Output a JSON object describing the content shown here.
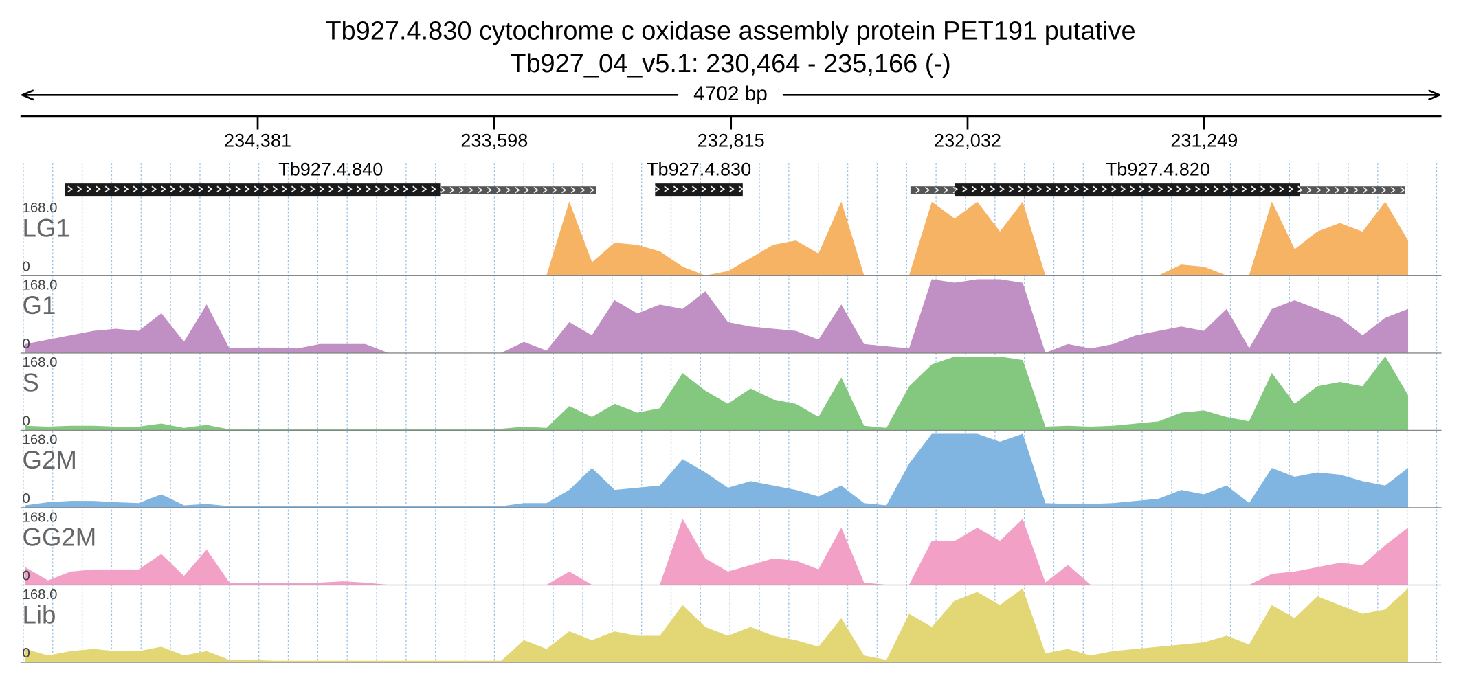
{
  "chart_data": {
    "type": "area",
    "title": "Tb927.4.830  cytochrome c oxidase assembly protein PET191  putative",
    "subtitle": "Tb927_04_v5.1: 230,464 - 235,166 (-)",
    "span_label": "4702 bp",
    "xlim": [
      235166,
      230464
    ],
    "xticks": [
      {
        "value": 234381,
        "label": "234,381"
      },
      {
        "value": 233598,
        "label": "233,598"
      },
      {
        "value": 232815,
        "label": "232,815"
      },
      {
        "value": 232032,
        "label": "232,032"
      },
      {
        "value": 231249,
        "label": "231,249"
      }
    ],
    "ylim": [
      0,
      168
    ],
    "yticks": [
      0,
      {
        "value": 168,
        "label": "168.0"
      }
    ],
    "genes": [
      {
        "label": "Tb927.4.840",
        "cds": [
          235018,
          233775
        ],
        "utr": [
          [
            233775,
            233261
          ]
        ]
      },
      {
        "label": "Tb927.4.830",
        "cds": [
          233066,
          232776
        ],
        "utr": []
      },
      {
        "label": "Tb927.4.820",
        "cds": [
          232073,
          230933
        ],
        "utr": [
          [
            232221,
            232073
          ],
          [
            230933,
            230584
          ]
        ]
      }
    ],
    "x": [
      235150,
      235075,
      235000,
      234925,
      234850,
      234775,
      234700,
      234625,
      234550,
      234475,
      234400,
      234325,
      234250,
      234175,
      234100,
      234025,
      233950,
      233875,
      233800,
      233725,
      233650,
      233575,
      233500,
      233425,
      233350,
      233275,
      233200,
      233125,
      233050,
      232975,
      232900,
      232825,
      232750,
      232675,
      232600,
      232525,
      232450,
      232375,
      232300,
      232225,
      232150,
      232075,
      232000,
      231925,
      231850,
      231775,
      231700,
      231625,
      231550,
      231475,
      231400,
      231325,
      231250,
      231175,
      231100,
      231025,
      230950,
      230875,
      230800,
      230725,
      230650,
      230575
    ],
    "series": [
      {
        "name": "LG1",
        "color": "#f6b363",
        "values": [
          0,
          0,
          0,
          0,
          0,
          0,
          0,
          0,
          0,
          0,
          0,
          0,
          0,
          0,
          0,
          0,
          0,
          0,
          0,
          0,
          0,
          0,
          0,
          0,
          168,
          30,
          75,
          70,
          55,
          20,
          0,
          10,
          40,
          70,
          80,
          50,
          168,
          0,
          0,
          0,
          168,
          130,
          168,
          100,
          168,
          0,
          0,
          0,
          0,
          0,
          0,
          25,
          20,
          0,
          0,
          168,
          60,
          100,
          120,
          100,
          168,
          80
        ]
      },
      {
        "name": "G1",
        "color": "#c08fc3",
        "values": [
          20,
          30,
          40,
          50,
          55,
          50,
          90,
          25,
          110,
          10,
          12,
          12,
          10,
          20,
          20,
          20,
          0,
          0,
          0,
          0,
          0,
          0,
          25,
          5,
          70,
          40,
          120,
          90,
          110,
          100,
          140,
          70,
          60,
          55,
          50,
          30,
          110,
          20,
          15,
          10,
          168,
          160,
          168,
          168,
          160,
          0,
          20,
          10,
          20,
          40,
          50,
          60,
          50,
          100,
          10,
          100,
          120,
          100,
          80,
          40,
          80,
          100
        ]
      },
      {
        "name": "S",
        "color": "#84c77f",
        "values": [
          10,
          8,
          10,
          10,
          8,
          8,
          15,
          5,
          12,
          2,
          3,
          3,
          3,
          3,
          3,
          3,
          3,
          3,
          3,
          3,
          3,
          3,
          8,
          5,
          55,
          30,
          60,
          40,
          50,
          130,
          90,
          60,
          95,
          70,
          60,
          30,
          120,
          10,
          5,
          100,
          150,
          168,
          168,
          168,
          160,
          8,
          10,
          8,
          10,
          15,
          20,
          40,
          45,
          30,
          20,
          130,
          60,
          100,
          110,
          100,
          168,
          80
        ]
      },
      {
        "name": "G2M",
        "color": "#7fb5e0",
        "values": [
          5,
          12,
          15,
          15,
          12,
          10,
          30,
          5,
          8,
          3,
          3,
          3,
          3,
          3,
          3,
          3,
          3,
          3,
          3,
          3,
          3,
          3,
          10,
          10,
          40,
          90,
          40,
          45,
          50,
          110,
          80,
          45,
          60,
          50,
          40,
          25,
          50,
          10,
          5,
          100,
          168,
          168,
          168,
          150,
          168,
          10,
          8,
          8,
          10,
          15,
          20,
          40,
          30,
          50,
          10,
          90,
          70,
          80,
          75,
          60,
          50,
          90
        ]
      },
      {
        "name": "GG2M",
        "color": "#f2a0c6",
        "values": [
          40,
          10,
          30,
          35,
          35,
          35,
          70,
          20,
          80,
          5,
          5,
          5,
          5,
          5,
          8,
          5,
          0,
          0,
          0,
          0,
          0,
          0,
          0,
          0,
          30,
          0,
          0,
          0,
          0,
          150,
          60,
          30,
          45,
          60,
          55,
          35,
          130,
          5,
          0,
          0,
          100,
          100,
          130,
          100,
          150,
          5,
          45,
          0,
          0,
          0,
          0,
          0,
          0,
          0,
          0,
          25,
          30,
          40,
          50,
          45,
          90,
          130
        ]
      },
      {
        "name": "Lib",
        "color": "#e3d775",
        "values": [
          30,
          15,
          25,
          30,
          25,
          25,
          35,
          15,
          25,
          5,
          5,
          3,
          3,
          3,
          3,
          3,
          3,
          3,
          3,
          3,
          3,
          3,
          50,
          30,
          70,
          50,
          70,
          60,
          60,
          130,
          80,
          60,
          80,
          60,
          50,
          35,
          100,
          15,
          5,
          110,
          80,
          140,
          160,
          130,
          168,
          20,
          30,
          15,
          25,
          30,
          35,
          40,
          45,
          60,
          40,
          130,
          100,
          150,
          130,
          110,
          120,
          168
        ]
      }
    ]
  }
}
